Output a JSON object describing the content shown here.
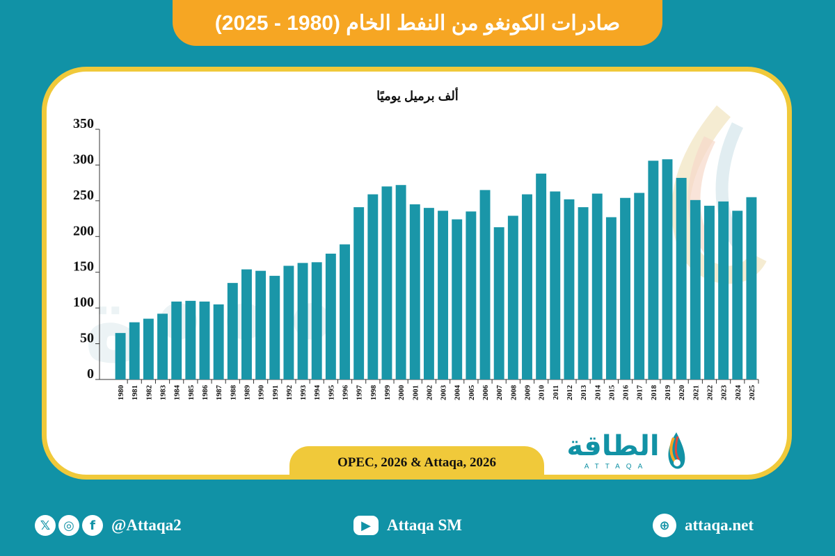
{
  "header": {
    "title": "صادرات الكونغو من النفط الخام (1980 - 2025)"
  },
  "source": "OPEC, 2026 & Attaqa, 2026",
  "logo": {
    "arabic": "الطاقة",
    "latin": "ATTAQA"
  },
  "footer": {
    "social_handle": "@Attaqa2",
    "youtube": "Attaqa SM",
    "website": "attaqa.net"
  },
  "colors": {
    "bar": "#1a96a8",
    "background": "#1192a6",
    "banner": "#f6a623",
    "frame": "#f0c93a"
  },
  "icons": [
    "x-icon",
    "instagram-icon",
    "facebook-icon",
    "youtube-icon",
    "globe-icon"
  ],
  "chart_data": {
    "type": "bar",
    "title": "صادرات الكونغو من النفط الخام (1980 - 2025)",
    "ylabel": "ألف برميل يوميًا",
    "xlabel": "",
    "ylim": [
      0,
      350
    ],
    "yticks": [
      0,
      50,
      100,
      150,
      200,
      250,
      300,
      350
    ],
    "grid": false,
    "categories": [
      "1980",
      "1981",
      "1982",
      "1983",
      "1984",
      "1985",
      "1986",
      "1987",
      "1988",
      "1989",
      "1990",
      "1991",
      "1992",
      "1993",
      "1994",
      "1995",
      "1996",
      "1997",
      "1998",
      "1999",
      "2000",
      "2001",
      "2002",
      "2003",
      "2004",
      "2005",
      "2006",
      "2007",
      "2008",
      "2009",
      "2010",
      "2011",
      "2012",
      "2013",
      "2014",
      "2015",
      "2016",
      "2017",
      "2018",
      "2019",
      "2020",
      "2021",
      "2022",
      "2023",
      "2024",
      "2025"
    ],
    "values": [
      65,
      80,
      85,
      92,
      109,
      110,
      109,
      105,
      135,
      154,
      152,
      145,
      159,
      163,
      164,
      176,
      189,
      241,
      259,
      270,
      272,
      245,
      240,
      236,
      224,
      235,
      265,
      213,
      229,
      259,
      288,
      263,
      252,
      241,
      260,
      227,
      254,
      261,
      306,
      308,
      282,
      251,
      243,
      249,
      236,
      255
    ]
  }
}
